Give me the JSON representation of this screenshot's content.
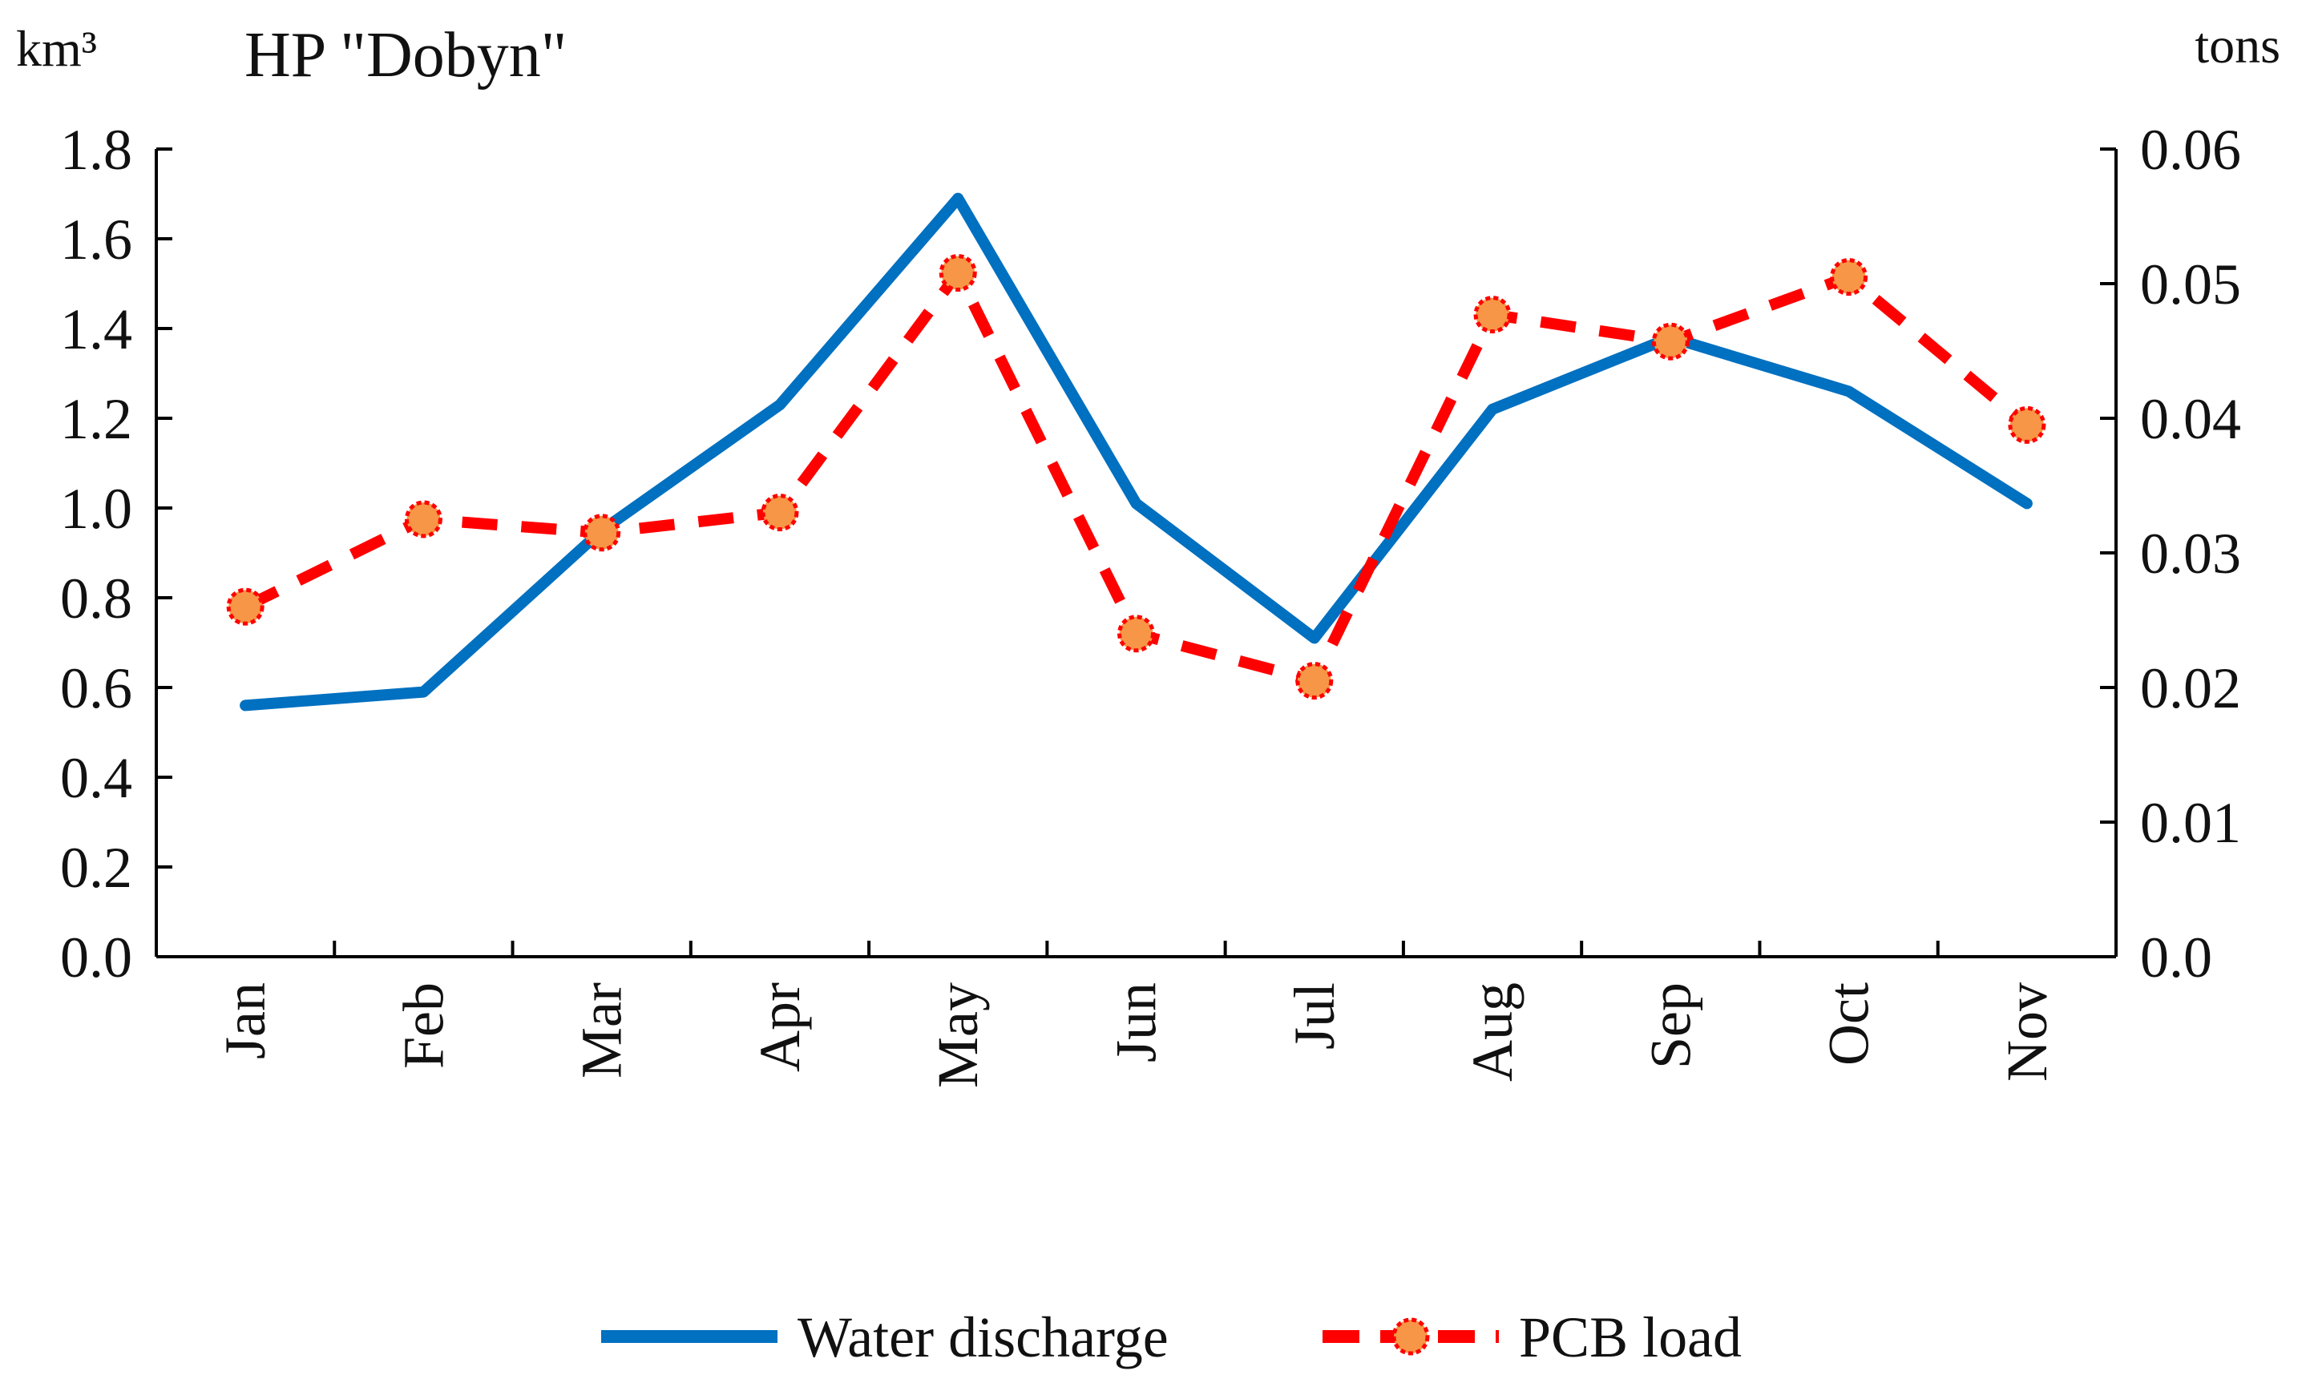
{
  "chart_data": {
    "type": "line",
    "title": "HP \"Dobyn\"",
    "y_left_unit": "km³",
    "y_right_unit": "tons",
    "categories": [
      "Jan",
      "Feb",
      "Mar",
      "Apr",
      "May",
      "Jun",
      "Jul",
      "Aug",
      "Sep",
      "Oct",
      "Nov"
    ],
    "y_left": {
      "min": 0.0,
      "max": 1.8,
      "ticks": [
        "0.0",
        "0.2",
        "0.4",
        "0.6",
        "0.8",
        "1.0",
        "1.2",
        "1.4",
        "1.6",
        "1.8"
      ]
    },
    "y_right": {
      "min": 0.0,
      "max": 0.06,
      "ticks": [
        "0.0",
        "0.01",
        "0.02",
        "0.03",
        "0.04",
        "0.05",
        "0.06"
      ]
    },
    "series": [
      {
        "name": "Water discharge",
        "axis": "left",
        "color": "#0070C0",
        "style": "solid",
        "values": [
          0.56,
          0.59,
          0.95,
          1.23,
          1.69,
          1.01,
          0.71,
          1.22,
          1.38,
          1.26,
          1.01
        ]
      },
      {
        "name": "PCB load",
        "axis": "right",
        "color": "#FF0000",
        "marker_fill": "#F79646",
        "style": "dashed",
        "values": [
          0.026,
          0.0325,
          0.0315,
          0.033,
          0.0508,
          0.024,
          0.0205,
          0.0477,
          0.0457,
          0.0505,
          0.0395
        ]
      }
    ],
    "legend": [
      {
        "label": "Water discharge"
      },
      {
        "label": "PCB load"
      }
    ],
    "legend_position": "bottom",
    "grid": false
  }
}
